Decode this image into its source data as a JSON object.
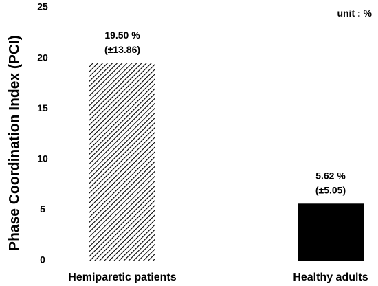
{
  "chart_data": {
    "type": "bar",
    "categories": [
      "Hemiparetic patients",
      "Healthy adults"
    ],
    "values": [
      19.5,
      5.62
    ],
    "bar_labels": [
      "19.50 %",
      "5.62 %"
    ],
    "error_labels": [
      "(±13.86)",
      "(±5.05)"
    ],
    "bar_styles": [
      "hatched",
      "solid"
    ],
    "title": "",
    "xlabel": "",
    "ylabel": "Phase Coordination Index (PCI)",
    "ylim": [
      0,
      25
    ],
    "yticks": [
      0,
      5,
      10,
      15,
      20,
      25
    ],
    "unit_note": "unit : %",
    "grid": false,
    "colors": {
      "bar": "#000000",
      "text": "#000000"
    }
  }
}
